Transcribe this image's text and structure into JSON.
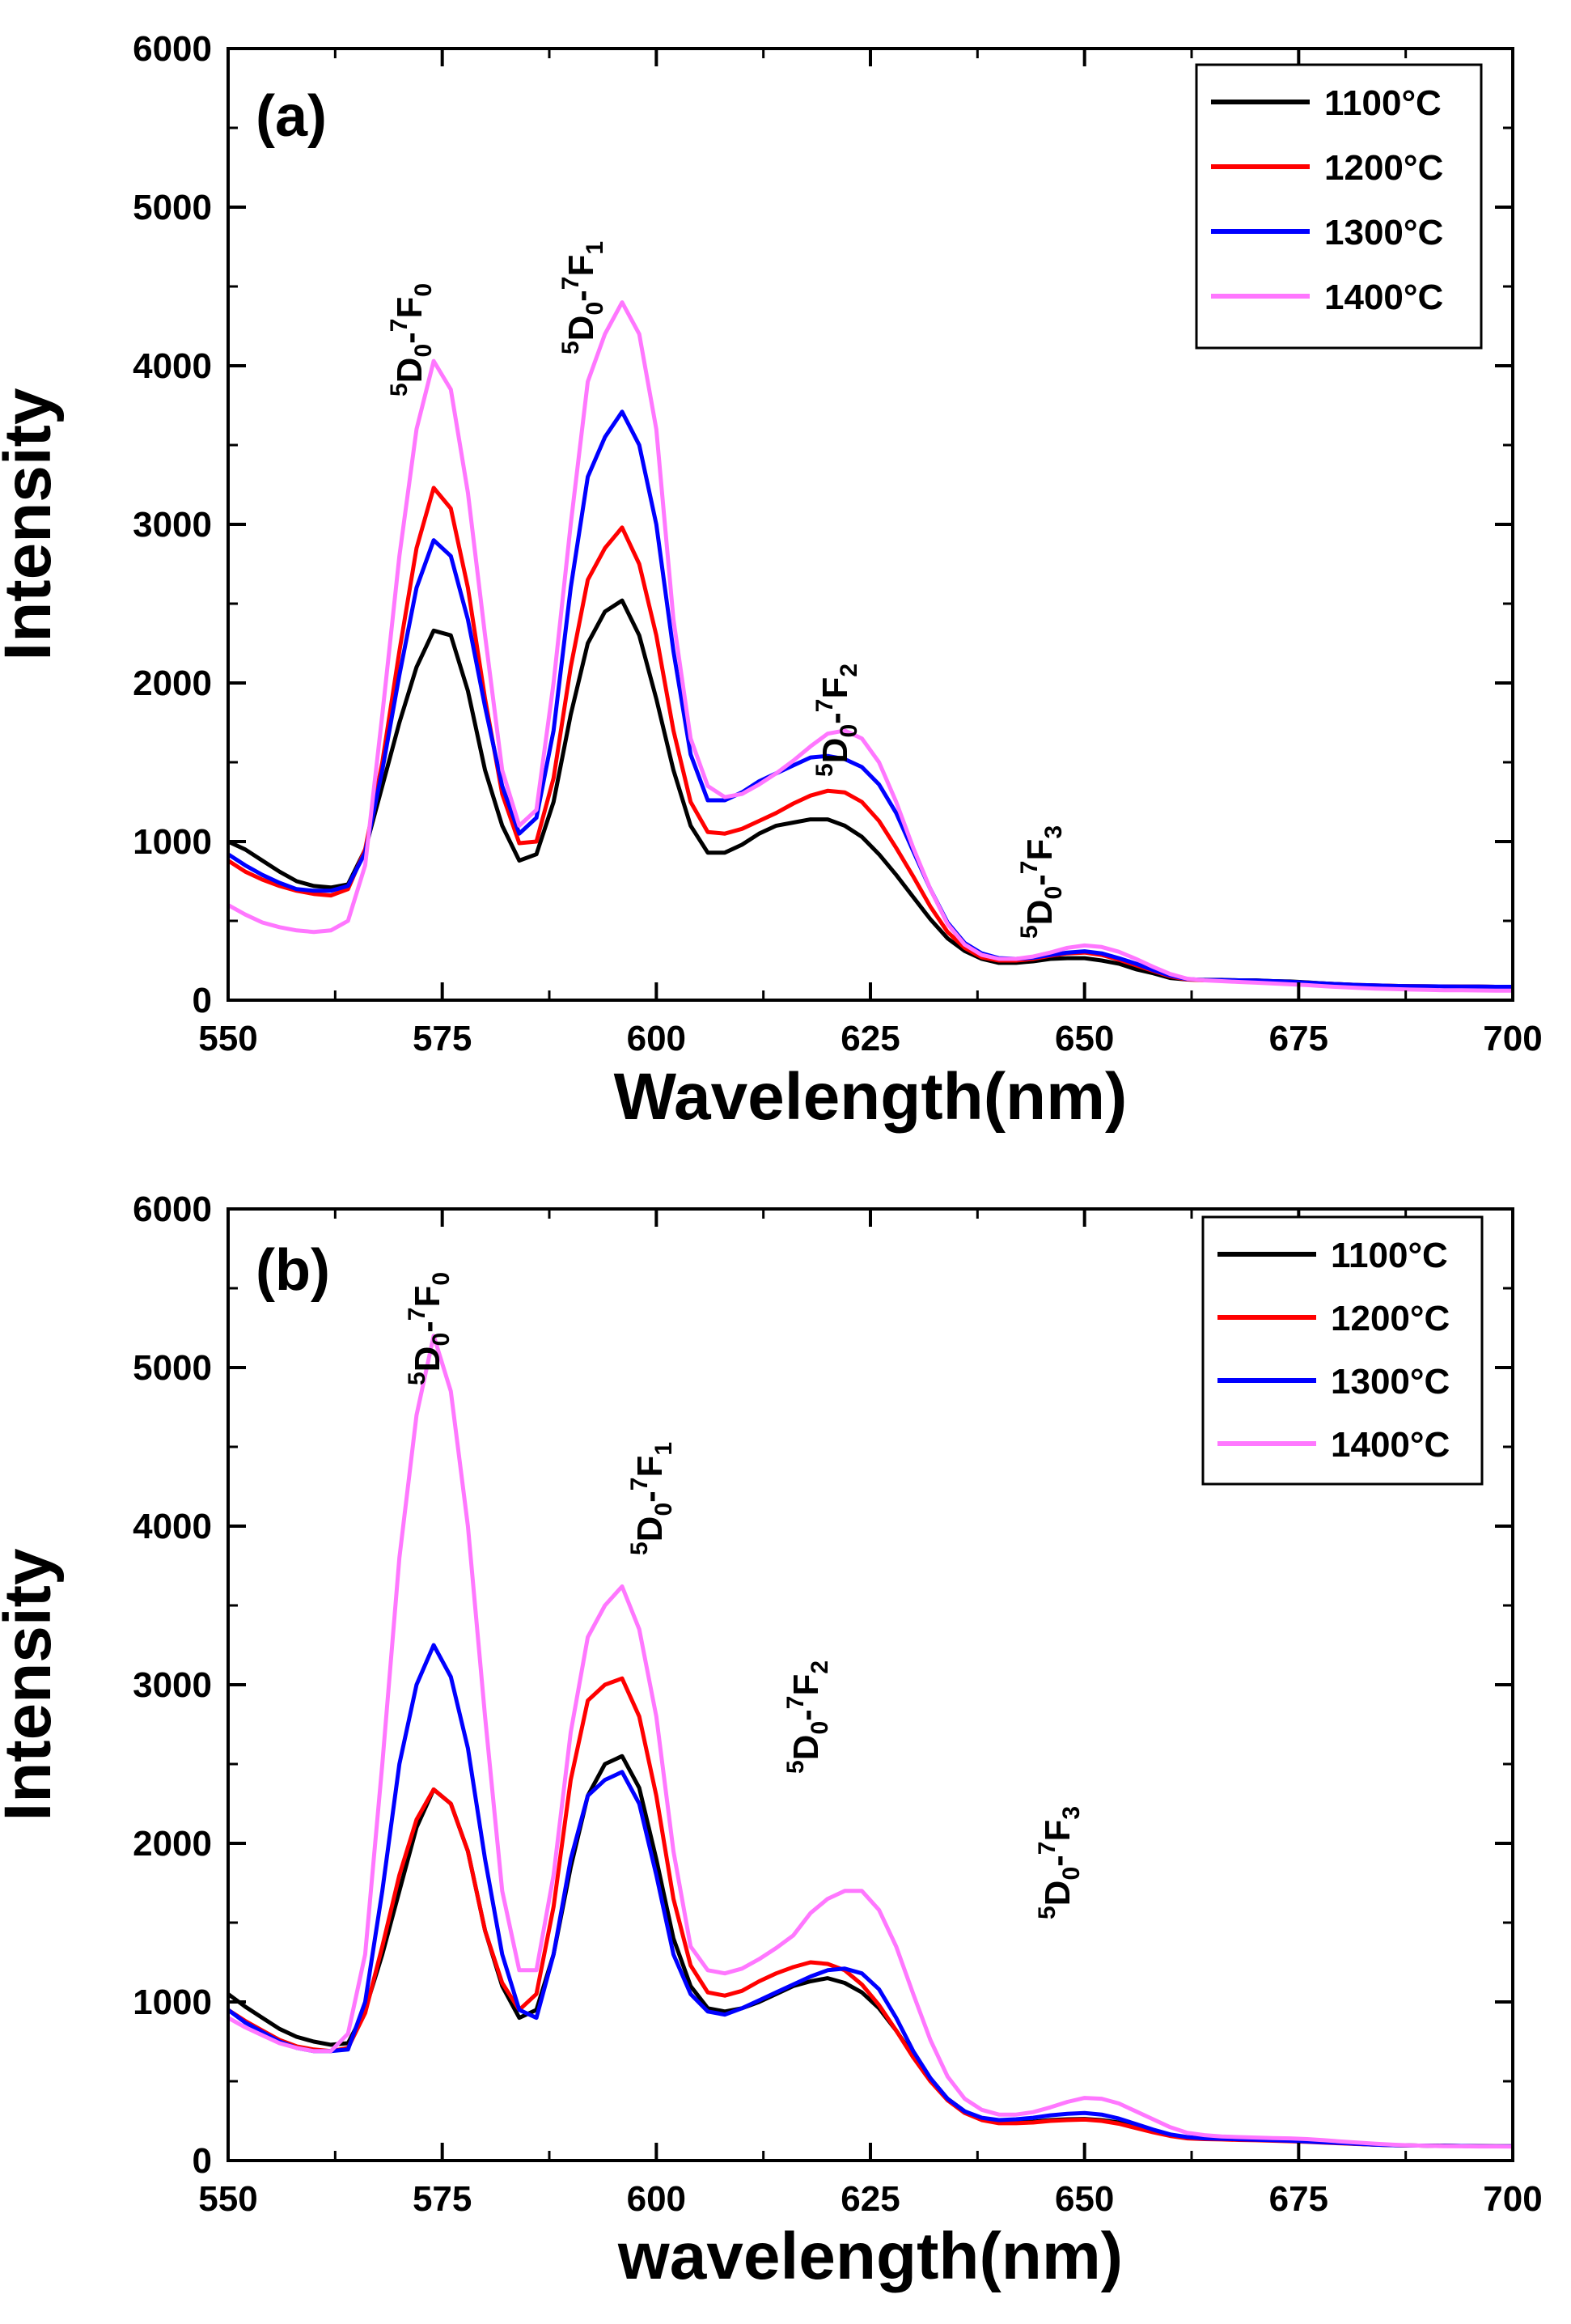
{
  "chart_data": [
    {
      "type": "line",
      "panel_label": "(a)",
      "xlabel": "Wavelength(nm)",
      "ylabel": "Intensity",
      "xlim": [
        550,
        700
      ],
      "ylim": [
        0,
        6000
      ],
      "xticks": [
        "550",
        "575",
        "600",
        "625",
        "650",
        "675",
        "700"
      ],
      "yticks": [
        "0",
        "1000",
        "2000",
        "3000",
        "4000",
        "5000",
        "6000"
      ],
      "legend_position": "top-right",
      "x": [
        550,
        552,
        554,
        556,
        558,
        560,
        562,
        564,
        566,
        568,
        570,
        572,
        574,
        576,
        578,
        580,
        582,
        584,
        586,
        588,
        590,
        592,
        594,
        596,
        598,
        600,
        602,
        604,
        606,
        608,
        610,
        612,
        614,
        616,
        618,
        620,
        622,
        624,
        626,
        628,
        630,
        632,
        634,
        636,
        638,
        640,
        642,
        644,
        646,
        648,
        650,
        652,
        654,
        656,
        658,
        660,
        662,
        664,
        666,
        668,
        670,
        672,
        674,
        676,
        678,
        680,
        682,
        684,
        686,
        688,
        690,
        692,
        694,
        696,
        698,
        700
      ],
      "series": [
        {
          "name": "1100°C",
          "color": "#000000",
          "values": [
            1000,
            950,
            880,
            810,
            750,
            720,
            710,
            730,
            950,
            1350,
            1750,
            2100,
            2330,
            2300,
            1950,
            1450,
            1100,
            880,
            920,
            1250,
            1800,
            2250,
            2450,
            2520,
            2300,
            1900,
            1450,
            1100,
            930,
            930,
            980,
            1050,
            1100,
            1120,
            1140,
            1140,
            1100,
            1030,
            920,
            790,
            650,
            510,
            390,
            310,
            260,
            235,
            235,
            245,
            260,
            265,
            265,
            250,
            230,
            195,
            170,
            140,
            130,
            128,
            128,
            125,
            125,
            120,
            118,
            112,
            105,
            100,
            95,
            92,
            90,
            88,
            87,
            86,
            85,
            85,
            84,
            84
          ]
        },
        {
          "name": "1200°C",
          "color": "#ff0000",
          "values": [
            880,
            810,
            760,
            720,
            690,
            670,
            660,
            700,
            950,
            1500,
            2200,
            2850,
            3230,
            3100,
            2600,
            1900,
            1300,
            990,
            1000,
            1400,
            2100,
            2650,
            2850,
            2980,
            2750,
            2300,
            1700,
            1250,
            1060,
            1050,
            1080,
            1130,
            1180,
            1240,
            1290,
            1320,
            1310,
            1250,
            1130,
            960,
            780,
            590,
            430,
            330,
            270,
            250,
            250,
            260,
            280,
            295,
            300,
            285,
            255,
            220,
            185,
            150,
            130,
            125,
            125,
            123,
            122,
            118,
            115,
            110,
            105,
            100,
            96,
            93,
            90,
            88,
            87,
            86,
            85,
            85,
            84,
            84
          ]
        },
        {
          "name": "1300°C",
          "color": "#0000ff",
          "values": [
            920,
            850,
            790,
            740,
            700,
            690,
            690,
            720,
            930,
            1450,
            2050,
            2600,
            2900,
            2800,
            2400,
            1850,
            1350,
            1050,
            1150,
            1700,
            2600,
            3300,
            3550,
            3710,
            3500,
            3000,
            2200,
            1550,
            1260,
            1260,
            1310,
            1380,
            1430,
            1480,
            1530,
            1540,
            1520,
            1470,
            1360,
            1180,
            940,
            700,
            490,
            360,
            295,
            265,
            260,
            268,
            285,
            300,
            308,
            295,
            265,
            230,
            190,
            155,
            133,
            127,
            127,
            125,
            124,
            120,
            116,
            110,
            105,
            100,
            96,
            93,
            90,
            88,
            87,
            86,
            85,
            85,
            84,
            84
          ]
        },
        {
          "name": "1400°C",
          "color": "#ff77ff",
          "values": [
            600,
            540,
            490,
            460,
            440,
            430,
            440,
            500,
            850,
            1800,
            2800,
            3600,
            4030,
            3850,
            3200,
            2300,
            1450,
            1100,
            1200,
            2000,
            3000,
            3900,
            4200,
            4400,
            4200,
            3600,
            2400,
            1650,
            1350,
            1280,
            1300,
            1360,
            1430,
            1510,
            1600,
            1680,
            1700,
            1650,
            1500,
            1250,
            960,
            700,
            480,
            350,
            285,
            260,
            260,
            275,
            300,
            330,
            345,
            335,
            305,
            260,
            210,
            165,
            135,
            125,
            120,
            115,
            110,
            105,
            100,
            95,
            88,
            82,
            77,
            73,
            70,
            67,
            65,
            63,
            62,
            61,
            60,
            60
          ]
        }
      ],
      "annotations": [
        {
          "base": "D",
          "sup1": "5",
          "sub1": "0",
          "sep": "-",
          "sup2": "7",
          "base2": "F",
          "sub2": "0"
        },
        {
          "base": "D",
          "sup1": "5",
          "sub1": "0",
          "sep": "-",
          "sup2": "7",
          "base2": "F",
          "sub2": "1"
        },
        {
          "base": "D",
          "sup1": "5",
          "sub1": "0",
          "sep": "-",
          "sup2": "7",
          "base2": "F",
          "sub2": "2"
        },
        {
          "base": "D",
          "sup1": "5",
          "sub1": "0",
          "sep": "-",
          "sup2": "7",
          "base2": "F",
          "sub2": "3"
        }
      ]
    },
    {
      "type": "line",
      "panel_label": "(b)",
      "xlabel": "wavelength(nm)",
      "ylabel": "Intensity",
      "xlim": [
        550,
        700
      ],
      "ylim": [
        0,
        6000
      ],
      "xticks": [
        "550",
        "575",
        "600",
        "625",
        "650",
        "675",
        "700"
      ],
      "yticks": [
        "0",
        "1000",
        "2000",
        "3000",
        "4000",
        "5000",
        "6000"
      ],
      "legend_position": "top-right",
      "x": [
        550,
        552,
        554,
        556,
        558,
        560,
        562,
        564,
        566,
        568,
        570,
        572,
        574,
        576,
        578,
        580,
        582,
        584,
        586,
        588,
        590,
        592,
        594,
        596,
        598,
        600,
        602,
        604,
        606,
        608,
        610,
        612,
        614,
        616,
        618,
        620,
        622,
        624,
        626,
        628,
        630,
        632,
        634,
        636,
        638,
        640,
        642,
        644,
        646,
        648,
        650,
        652,
        654,
        656,
        658,
        660,
        662,
        664,
        666,
        668,
        670,
        672,
        674,
        676,
        678,
        680,
        682,
        684,
        686,
        688,
        690,
        692,
        694,
        696,
        698,
        700
      ],
      "series": [
        {
          "name": "1100°C",
          "color": "#000000",
          "values": [
            1050,
            970,
            900,
            830,
            780,
            750,
            730,
            740,
            950,
            1300,
            1700,
            2100,
            2340,
            2250,
            1950,
            1450,
            1100,
            900,
            950,
            1300,
            1850,
            2300,
            2500,
            2550,
            2350,
            1900,
            1400,
            1100,
            960,
            940,
            960,
            1000,
            1050,
            1100,
            1130,
            1150,
            1120,
            1060,
            960,
            820,
            660,
            510,
            390,
            310,
            260,
            240,
            240,
            245,
            255,
            260,
            262,
            255,
            240,
            215,
            185,
            160,
            145,
            138,
            135,
            133,
            130,
            128,
            125,
            120,
            115,
            110,
            105,
            100,
            97,
            95,
            94,
            93,
            92,
            91,
            90,
            90
          ]
        },
        {
          "name": "1200°C",
          "color": "#ff0000",
          "values": [
            950,
            880,
            820,
            760,
            720,
            700,
            690,
            710,
            930,
            1350,
            1800,
            2150,
            2340,
            2250,
            1950,
            1450,
            1120,
            950,
            1050,
            1600,
            2400,
            2900,
            3000,
            3040,
            2800,
            2300,
            1650,
            1230,
            1060,
            1040,
            1070,
            1130,
            1180,
            1220,
            1250,
            1240,
            1200,
            1110,
            980,
            820,
            650,
            500,
            380,
            300,
            255,
            235,
            235,
            240,
            250,
            255,
            258,
            250,
            232,
            205,
            178,
            155,
            140,
            135,
            133,
            130,
            128,
            125,
            122,
            118,
            113,
            108,
            104,
            100,
            97,
            95,
            94,
            93,
            92,
            91,
            90,
            90
          ]
        },
        {
          "name": "1300°C",
          "color": "#0000ff",
          "values": [
            950,
            870,
            810,
            750,
            710,
            690,
            690,
            700,
            1000,
            1700,
            2500,
            3000,
            3250,
            3050,
            2600,
            1900,
            1300,
            950,
            900,
            1300,
            1900,
            2300,
            2400,
            2450,
            2250,
            1800,
            1300,
            1050,
            940,
            920,
            960,
            1010,
            1060,
            1110,
            1160,
            1200,
            1210,
            1180,
            1080,
            900,
            690,
            520,
            390,
            310,
            270,
            255,
            260,
            270,
            285,
            295,
            300,
            290,
            265,
            230,
            195,
            165,
            148,
            140,
            137,
            134,
            131,
            128,
            125,
            120,
            115,
            110,
            105,
            100,
            97,
            95,
            94,
            93,
            92,
            91,
            90,
            90
          ]
        },
        {
          "name": "1400°C",
          "color": "#ff77ff",
          "values": [
            900,
            840,
            790,
            740,
            710,
            690,
            690,
            800,
            1300,
            2500,
            3800,
            4700,
            5200,
            4850,
            4000,
            2800,
            1700,
            1200,
            1200,
            1800,
            2700,
            3300,
            3500,
            3620,
            3350,
            2800,
            1950,
            1350,
            1200,
            1180,
            1210,
            1270,
            1340,
            1420,
            1560,
            1650,
            1700,
            1700,
            1580,
            1350,
            1050,
            760,
            530,
            390,
            320,
            290,
            290,
            305,
            335,
            370,
            395,
            390,
            360,
            310,
            260,
            210,
            175,
            160,
            152,
            148,
            145,
            142,
            140,
            135,
            128,
            120,
            113,
            106,
            100,
            96,
            93,
            91,
            90,
            89,
            89,
            88
          ]
        }
      ],
      "annotations": [
        {
          "base": "D",
          "sup1": "5",
          "sub1": "0",
          "sep": "-",
          "sup2": "7",
          "base2": "F",
          "sub2": "0"
        },
        {
          "base": "D",
          "sup1": "5",
          "sub1": "0",
          "sep": "-",
          "sup2": "7",
          "base2": "F",
          "sub2": "1"
        },
        {
          "base": "D",
          "sup1": "5",
          "sub1": "0",
          "sep": "-",
          "sup2": "7",
          "base2": "F",
          "sub2": "2"
        },
        {
          "base": "D",
          "sup1": "5",
          "sub1": "0",
          "sep": "-",
          "sup2": "7",
          "base2": "F",
          "sub2": "3"
        }
      ]
    }
  ]
}
